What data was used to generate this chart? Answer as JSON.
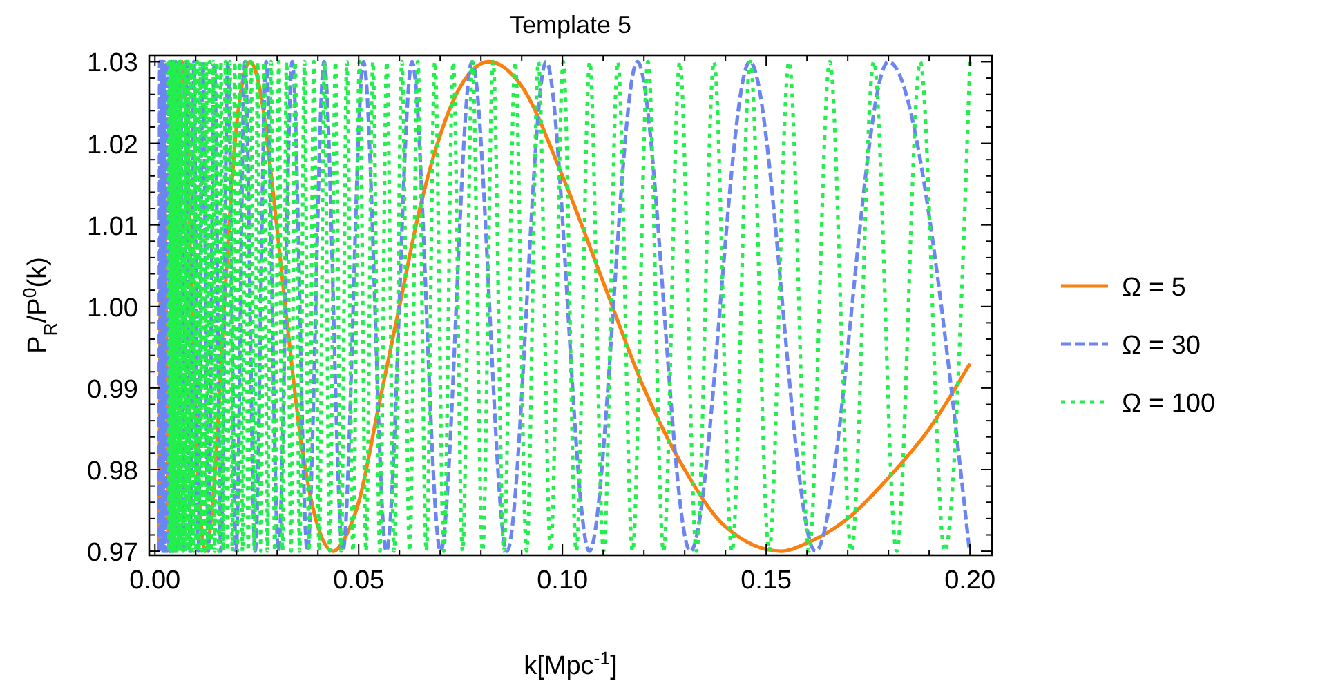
{
  "chart_data": {
    "type": "line",
    "title": "Template 5",
    "xlabel": "k[Mpc$^{-1}$]",
    "ylabel": "P$_{R}$/P$^{0}$(k)",
    "xlim": [
      -0.0014,
      0.2054
    ],
    "ylim": [
      0.9695,
      1.0308
    ],
    "xticks": [
      {
        "value": 0,
        "label": "0.00"
      },
      {
        "value": 0.01,
        "label": null
      },
      {
        "value": 0.02,
        "label": null
      },
      {
        "value": 0.03,
        "label": null
      },
      {
        "value": 0.04,
        "label": null
      },
      0.05,
      {
        "value": 0.06,
        "label": null
      },
      {
        "value": 0.07,
        "label": null
      },
      {
        "value": 0.08,
        "label": null
      },
      {
        "value": 0.09,
        "label": null
      },
      {
        "value": 0.1,
        "label": "0.10"
      },
      {
        "value": 0.11,
        "label": null
      },
      {
        "value": 0.12,
        "label": null
      },
      {
        "value": 0.13,
        "label": null
      },
      {
        "value": 0.14,
        "label": null
      },
      0.15,
      {
        "value": 0.16,
        "label": null
      },
      {
        "value": 0.17,
        "label": null
      },
      {
        "value": 0.18,
        "label": null
      },
      {
        "value": 0.19,
        "label": null
      },
      {
        "value": 0.2,
        "label": "0.20"
      }
    ],
    "yticks": [
      0.97,
      {
        "value": 0.972,
        "label": null
      },
      {
        "value": 0.974,
        "label": null
      },
      {
        "value": 0.976,
        "label": null
      },
      {
        "value": 0.978,
        "label": null
      },
      0.98,
      {
        "value": 0.982,
        "label": null
      },
      {
        "value": 0.984,
        "label": null
      },
      {
        "value": 0.986,
        "label": null
      },
      {
        "value": 0.988,
        "label": null
      },
      0.99,
      {
        "value": 0.992,
        "label": null
      },
      {
        "value": 0.994,
        "label": null
      },
      {
        "value": 0.996,
        "label": null
      },
      {
        "value": 0.998,
        "label": null
      },
      {
        "value": 1,
        "label": "1.00"
      },
      {
        "value": 1.002,
        "label": null
      },
      {
        "value": 1.004,
        "label": null
      },
      {
        "value": 1.006,
        "label": null
      },
      {
        "value": 1.008,
        "label": null
      },
      1.01,
      {
        "value": 1.012,
        "label": null
      },
      {
        "value": 1.014,
        "label": null
      },
      {
        "value": 1.016,
        "label": null
      },
      {
        "value": 1.018,
        "label": null
      },
      1.02,
      {
        "value": 1.022,
        "label": null
      },
      {
        "value": 1.024,
        "label": null
      },
      {
        "value": 1.026,
        "label": null
      },
      {
        "value": 1.028,
        "label": null
      },
      1.03
    ],
    "legend": "right",
    "series": [
      {
        "name": "Ω = 5",
        "color": "#f98010",
        "line_style": "solid",
        "x": [
          0.00101,
          0.00189,
          0.00355,
          0.00665,
          0.0078,
          0.0091,
          0.0105,
          0.01246,
          0.0145,
          0.017,
          0.02,
          0.02335,
          0.026,
          0.029,
          0.032,
          0.036,
          0.04,
          0.04376,
          0.047,
          0.05,
          0.055,
          0.06,
          0.065,
          0.07,
          0.075,
          0.082,
          0.09,
          0.1,
          0.11,
          0.12,
          0.13,
          0.14,
          0.1537,
          0.16,
          0.17,
          0.18,
          0.19,
          0.2
        ],
        "values": [
          0.97,
          1.03,
          0.97,
          1.03,
          null,
          1.0,
          0.98,
          0.97,
          0.978,
          1.0,
          1.022,
          1.03,
          1.026,
          1.014,
          1.0,
          0.983,
          0.973,
          0.97,
          0.972,
          0.976,
          0.988,
          1.0,
          1.012,
          1.021,
          1.027,
          1.03,
          1.027,
          1.016,
          1.003,
          0.99,
          0.98,
          0.973,
          0.97,
          0.971,
          0.974,
          0.979,
          0.985,
          0.993
        ]
      },
      {
        "name": "Ω = 30",
        "color": "#6b86f0",
        "line_style": "dashed",
        "x": [
          0.00106,
          0.00118,
          0.00131,
          0.00145,
          0.00161,
          0.00179,
          0.00199,
          0.00221,
          0.00245,
          0.00272,
          0.00302,
          0.00336,
          0.00373,
          0.00414,
          0.0046,
          0.0051,
          0.00567,
          0.0063,
          0.00699,
          0.00776,
          0.00862,
          0.00957,
          0.0106,
          0.0118,
          0.0131,
          0.0146,
          0.0162,
          0.0179,
          0.0199,
          0.0221,
          0.0246,
          0.0273,
          0.0303,
          0.0337,
          0.0374,
          0.0415,
          0.0461,
          0.0512,
          0.0568,
          0.0631,
          0.0701,
          0.0778,
          0.0864,
          0.096,
          0.1066,
          0.1184,
          0.1314,
          0.146,
          0.1621,
          0.18,
          0.1999
        ],
        "values": [
          0.97,
          1.03,
          0.97,
          1.03,
          0.97,
          1.03,
          0.97,
          1.03,
          0.97,
          1.03,
          0.97,
          1.03,
          0.97,
          1.03,
          0.97,
          1.03,
          0.97,
          1.03,
          0.97,
          1.03,
          0.97,
          1.03,
          0.97,
          1.03,
          0.97,
          1.03,
          0.97,
          1.03,
          0.97,
          1.03,
          0.97,
          1.03,
          0.97,
          1.03,
          0.97,
          1.03,
          0.97,
          1.03,
          0.97,
          1.03,
          0.97,
          1.03,
          0.97,
          1.03,
          0.97,
          1.03,
          0.97,
          1.03,
          0.97,
          1.03,
          0.97
        ]
      },
      {
        "name": "Ω = 100",
        "color": "#22ee4c",
        "line_style": "dotted",
        "x": [
          0.00337,
          0.00348,
          0.00359,
          0.0037,
          0.00382,
          0.00394,
          0.00407,
          0.0042,
          0.00433,
          0.00447,
          0.00461,
          0.00476,
          0.00491,
          0.00507,
          0.00523,
          0.0054,
          0.00557,
          0.00575,
          0.00593,
          0.00612,
          0.00631,
          0.00651,
          0.00672,
          0.00694,
          0.00716,
          0.00739,
          0.00762,
          0.00787,
          0.00812,
          0.00838,
          0.00864,
          0.00892,
          0.0092,
          0.0095,
          0.0098,
          0.01011,
          0.01044,
          0.01077,
          0.01111,
          0.01147,
          0.01183,
          0.0122,
          0.0126,
          0.013,
          0.0134,
          0.0138,
          0.0143,
          0.0147,
          0.0152,
          0.0157,
          0.0162,
          0.0167,
          0.0173,
          0.0178,
          0.0184,
          0.019,
          0.0196,
          0.0202,
          0.0208,
          0.0215,
          0.0222,
          0.0229,
          0.0236,
          0.0244,
          0.0252,
          0.026,
          0.0268,
          0.0276,
          0.0285,
          0.0294,
          0.0304,
          0.0313,
          0.0323,
          0.0334,
          0.0344,
          0.0355,
          0.0367,
          0.0378,
          0.039,
          0.0403,
          0.0416,
          0.0429,
          0.0443,
          0.0457,
          0.0471,
          0.0486,
          0.0502,
          0.0518,
          0.0535,
          0.0552,
          0.0569,
          0.0587,
          0.0606,
          0.0625,
          0.0645,
          0.0666,
          0.0687,
          0.0709,
          0.0732,
          0.0755,
          0.0779,
          0.0804,
          0.083,
          0.0856,
          0.0884,
          0.0912,
          0.0941,
          0.0971,
          0.1002,
          0.1034,
          0.1067,
          0.1101,
          0.1136,
          0.1172,
          0.121,
          0.1248,
          0.1288,
          0.1329,
          0.1372,
          0.1416,
          0.1461,
          0.1507,
          0.1556,
          0.1605,
          0.1656,
          0.1709,
          0.1764,
          0.182,
          0.1878,
          0.1938,
          0.2
        ],
        "values": [
          1.03,
          0.97,
          1.03,
          0.97,
          1.03,
          0.97,
          1.03,
          0.97,
          1.03,
          0.97,
          1.03,
          0.97,
          1.03,
          0.97,
          1.03,
          0.97,
          1.03,
          0.97,
          1.03,
          0.97,
          1.03,
          0.97,
          1.03,
          0.97,
          1.03,
          0.97,
          1.03,
          0.97,
          1.03,
          0.97,
          1.03,
          0.97,
          1.03,
          0.97,
          1.03,
          0.97,
          1.03,
          0.97,
          1.03,
          0.97,
          1.03,
          0.97,
          1.03,
          0.97,
          1.03,
          0.97,
          1.03,
          0.97,
          1.03,
          0.97,
          1.03,
          0.97,
          1.03,
          0.97,
          1.03,
          0.97,
          1.03,
          0.97,
          1.03,
          0.97,
          1.03,
          0.97,
          1.03,
          0.97,
          1.03,
          0.97,
          1.03,
          0.97,
          1.03,
          0.97,
          1.03,
          0.97,
          1.03,
          0.97,
          1.03,
          0.97,
          1.03,
          0.97,
          1.03,
          0.97,
          1.03,
          0.97,
          1.03,
          0.97,
          1.03,
          0.97,
          1.03,
          0.97,
          1.03,
          0.97,
          1.03,
          0.97,
          1.03,
          0.97,
          1.03,
          0.97,
          1.03,
          0.97,
          1.03,
          0.97,
          1.03,
          0.97,
          1.03,
          0.97,
          1.03,
          0.97,
          1.03,
          0.97,
          1.03,
          0.97,
          1.03,
          0.97,
          1.03,
          0.97,
          1.03,
          0.97,
          1.03,
          0.97,
          1.03,
          0.97,
          1.03,
          0.97,
          1.03,
          0.97,
          1.03,
          0.97,
          1.03,
          0.97,
          1.03,
          0.97,
          1.03
        ]
      }
    ]
  }
}
